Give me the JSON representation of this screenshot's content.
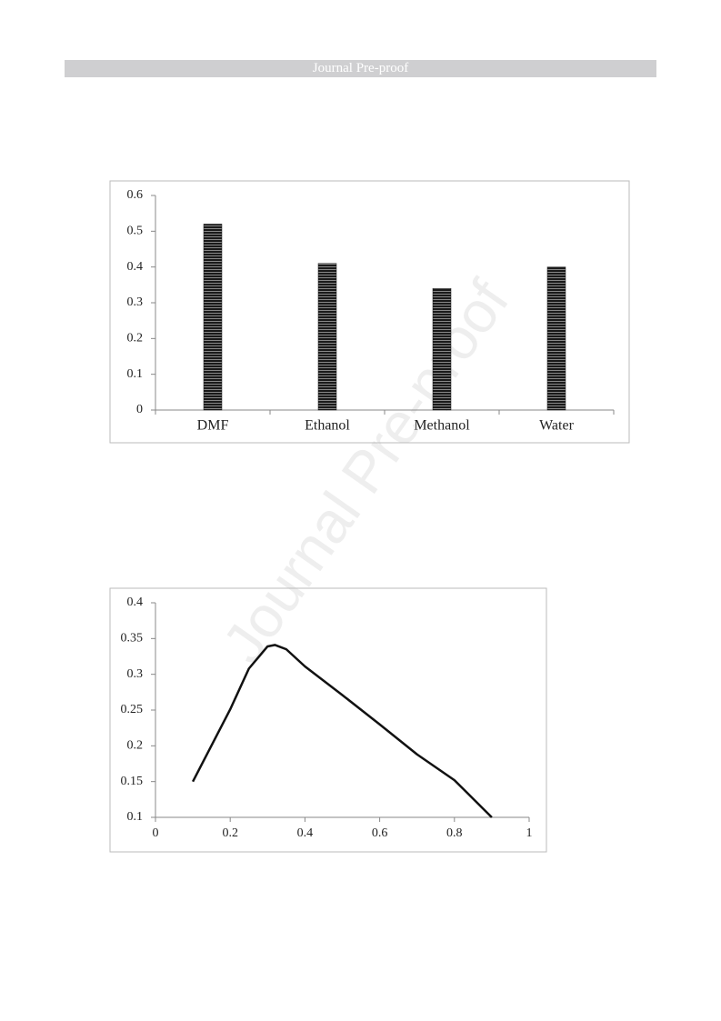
{
  "header": {
    "title": "Journal Pre-proof"
  },
  "watermark": "Journal Pre-proof",
  "chart_data": [
    {
      "type": "bar",
      "categories": [
        "DMF",
        "Ethanol",
        "Methanol",
        "Water"
      ],
      "values": [
        0.52,
        0.41,
        0.34,
        0.4
      ],
      "color": "#1a1a1a",
      "ylim": [
        0,
        0.6
      ],
      "yticks": [
        0,
        0.1,
        0.2,
        0.3,
        0.4,
        0.5,
        0.6
      ],
      "grid": false
    },
    {
      "type": "line",
      "x": [
        0.1,
        0.2,
        0.25,
        0.3,
        0.32,
        0.35,
        0.4,
        0.5,
        0.6,
        0.7,
        0.8,
        0.9
      ],
      "values": [
        0.15,
        0.251,
        0.308,
        0.339,
        0.341,
        0.335,
        0.311,
        0.271,
        0.23,
        0.188,
        0.152,
        0.1
      ],
      "color": "#111111",
      "xlim": [
        0,
        1
      ],
      "xticks": [
        0,
        0.2,
        0.4,
        0.6,
        0.8,
        1
      ],
      "ylim": [
        0.1,
        0.4
      ],
      "yticks": [
        0.1,
        0.15,
        0.2,
        0.25,
        0.3,
        0.35,
        0.4
      ],
      "grid": false
    }
  ]
}
